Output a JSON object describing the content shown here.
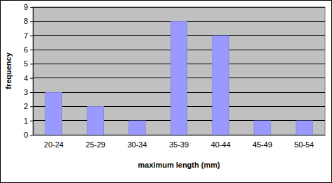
{
  "chart_data": {
    "type": "bar",
    "x_label": "maximum length (mm)",
    "y_label": "frequency",
    "categories": [
      "20-24",
      "25-29",
      "30-34",
      "35-39",
      "40-44",
      "45-49",
      "50-54"
    ],
    "values": [
      3,
      2,
      1,
      8,
      7,
      1,
      1
    ],
    "color": "#9999ff",
    "ylim": [
      0,
      9
    ],
    "yticks": [
      0,
      1,
      2,
      3,
      4,
      5,
      6,
      7,
      8,
      9
    ],
    "grid": true
  }
}
